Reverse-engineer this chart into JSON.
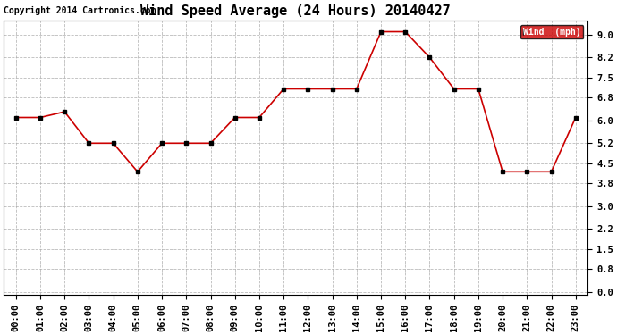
{
  "title": "Wind Speed Average (24 Hours) 20140427",
  "copyright": "Copyright 2014 Cartronics.com",
  "x_labels": [
    "00:00",
    "01:00",
    "02:00",
    "03:00",
    "04:00",
    "05:00",
    "06:00",
    "07:00",
    "08:00",
    "09:00",
    "10:00",
    "11:00",
    "12:00",
    "13:00",
    "14:00",
    "15:00",
    "16:00",
    "17:00",
    "18:00",
    "19:00",
    "20:00",
    "21:00",
    "22:00",
    "23:00"
  ],
  "wind_values": [
    6.1,
    6.1,
    6.3,
    5.2,
    5.2,
    4.2,
    5.2,
    5.2,
    5.2,
    6.1,
    6.1,
    7.1,
    7.1,
    7.1,
    7.1,
    9.1,
    9.1,
    8.2,
    7.1,
    7.1,
    4.2,
    4.2,
    4.2,
    6.1
  ],
  "y_ticks": [
    0.0,
    0.8,
    1.5,
    2.2,
    3.0,
    3.8,
    4.5,
    5.2,
    6.0,
    6.8,
    7.5,
    8.2,
    9.0
  ],
  "ylim": [
    -0.1,
    9.5
  ],
  "line_color": "#cc0000",
  "marker_color": "#000000",
  "legend_label": "Wind  (mph)",
  "legend_bg": "#cc0000",
  "legend_text_color": "#ffffff",
  "bg_color": "#ffffff",
  "grid_color": "#aaaaaa",
  "title_fontsize": 11,
  "copyright_fontsize": 7,
  "axis_label_fontsize": 7.5
}
